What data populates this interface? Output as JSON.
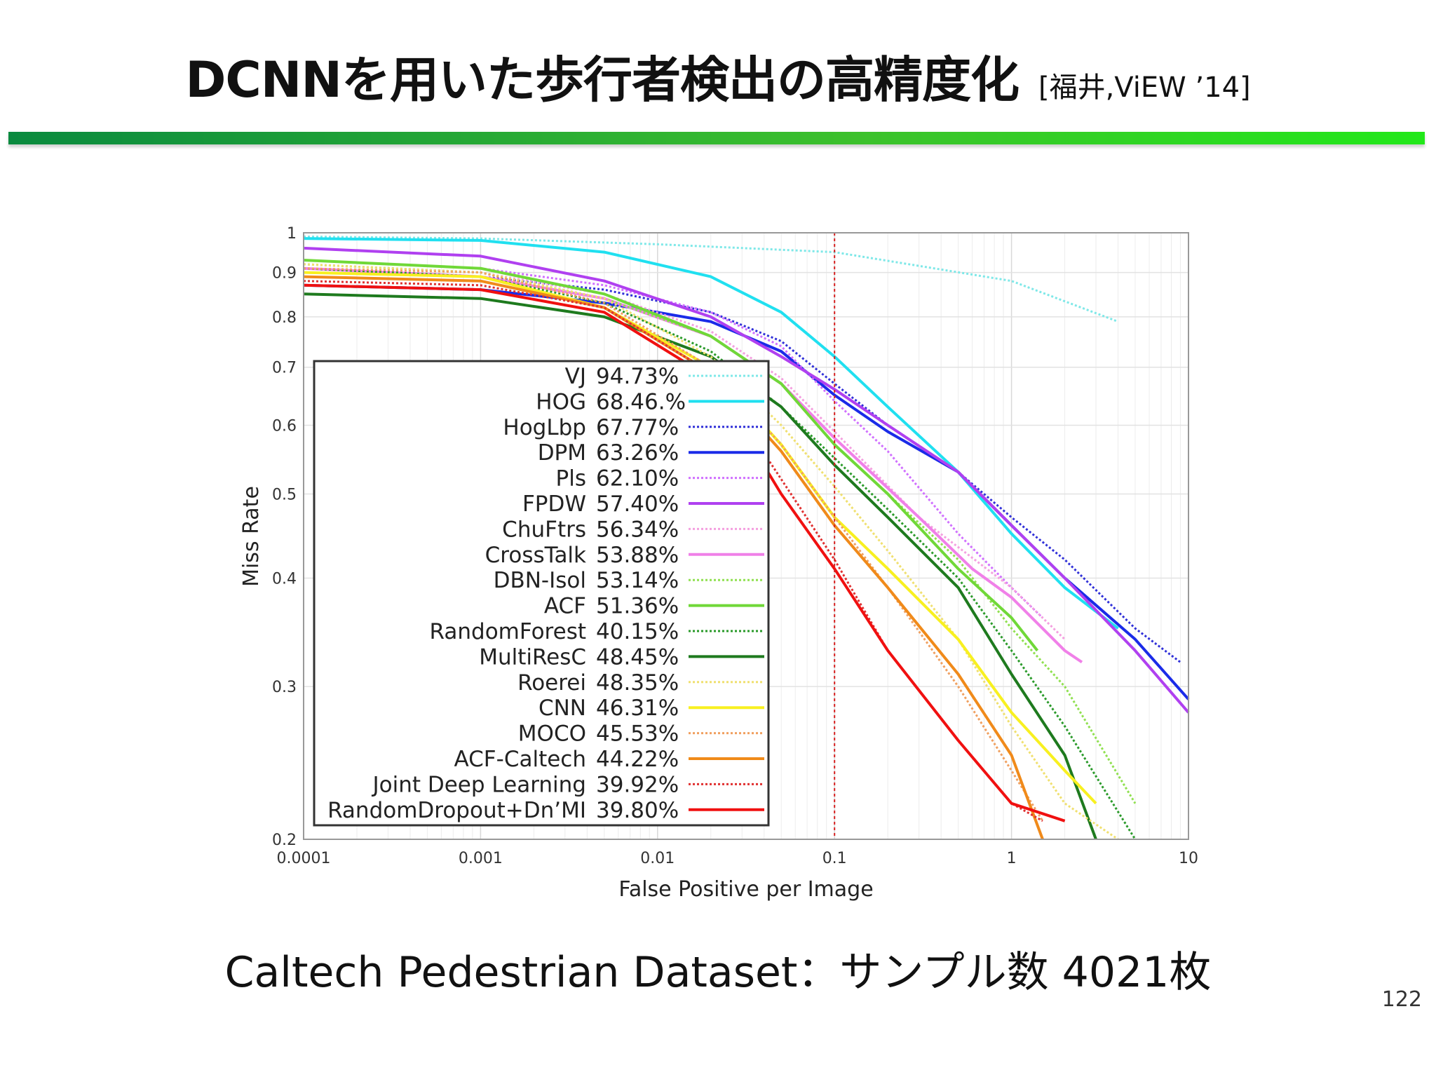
{
  "slide": {
    "title": "DCNNを用いた歩行者検出の高精度化",
    "citation": "[福井,ViEW ’14]",
    "caption": "Caltech Pedestrian Dataset：サンプル数 4021枚",
    "page_number": "122"
  },
  "chart_data": {
    "type": "line",
    "xlabel": "False Positive per Image",
    "ylabel": "Miss Rate",
    "xscale": "log",
    "yscale": "log",
    "xlim": [
      0.0001,
      10
    ],
    "ylim": [
      0.2,
      1
    ],
    "x_ticks": [
      {
        "value": 0.0001,
        "label": "0.0001"
      },
      {
        "value": 0.001,
        "label": "0.001"
      },
      {
        "value": 0.01,
        "label": "0.01"
      },
      {
        "value": 0.1,
        "label": "0.1"
      },
      {
        "value": 1,
        "label": "1"
      },
      {
        "value": 10,
        "label": "10"
      }
    ],
    "y_ticks": [
      {
        "value": 0.2,
        "label": "0.2"
      },
      {
        "value": 0.3,
        "label": "0.3"
      },
      {
        "value": 0.4,
        "label": "0.4"
      },
      {
        "value": 0.5,
        "label": "0.5"
      },
      {
        "value": 0.6,
        "label": "0.6"
      },
      {
        "value": 0.7,
        "label": "0.7"
      },
      {
        "value": 0.8,
        "label": "0.8"
      },
      {
        "value": 0.9,
        "label": "0.9"
      },
      {
        "value": 1,
        "label": "1"
      }
    ],
    "grid": true,
    "legend_position": "lower-left",
    "reference_line": {
      "x": 0.1,
      "color": "#d62020",
      "style": "dotted"
    },
    "series": [
      {
        "name": "VJ",
        "score": "94.73%",
        "color": "#7fe8e8",
        "dash": "dotted",
        "width": 3,
        "points": [
          [
            0.0001,
            0.99
          ],
          [
            0.001,
            0.985
          ],
          [
            0.01,
            0.97
          ],
          [
            0.1,
            0.95
          ],
          [
            1,
            0.88
          ],
          [
            4,
            0.79
          ]
        ]
      },
      {
        "name": "HOG",
        "score": "68.46.%",
        "color": "#20e0f0",
        "dash": "solid",
        "width": 4,
        "points": [
          [
            0.0001,
            0.985
          ],
          [
            0.001,
            0.98
          ],
          [
            0.005,
            0.95
          ],
          [
            0.02,
            0.89
          ],
          [
            0.05,
            0.81
          ],
          [
            0.1,
            0.72
          ],
          [
            0.2,
            0.63
          ],
          [
            0.5,
            0.53
          ],
          [
            1,
            0.45
          ],
          [
            2,
            0.39
          ],
          [
            4,
            0.35
          ]
        ]
      },
      {
        "name": "HogLbp",
        "score": "67.77%",
        "color": "#3030d8",
        "dash": "dotted",
        "width": 3,
        "points": [
          [
            0.0001,
            0.9
          ],
          [
            0.001,
            0.89
          ],
          [
            0.005,
            0.86
          ],
          [
            0.02,
            0.81
          ],
          [
            0.05,
            0.75
          ],
          [
            0.1,
            0.67
          ],
          [
            0.2,
            0.6
          ],
          [
            0.5,
            0.53
          ],
          [
            1,
            0.47
          ],
          [
            2,
            0.42
          ],
          [
            5,
            0.35
          ],
          [
            9,
            0.32
          ]
        ]
      },
      {
        "name": "DPM",
        "score": "63.26%",
        "color": "#1a2be8",
        "dash": "solid",
        "width": 4,
        "points": [
          [
            0.0001,
            0.87
          ],
          [
            0.001,
            0.86
          ],
          [
            0.005,
            0.83
          ],
          [
            0.02,
            0.79
          ],
          [
            0.05,
            0.73
          ],
          [
            0.1,
            0.65
          ],
          [
            0.2,
            0.59
          ],
          [
            0.5,
            0.53
          ],
          [
            1,
            0.46
          ],
          [
            2,
            0.4
          ],
          [
            5,
            0.34
          ],
          [
            10,
            0.29
          ]
        ]
      },
      {
        "name": "Pls",
        "score": "62.10%",
        "color": "#d070ff",
        "dash": "dotted",
        "width": 3,
        "points": [
          [
            0.0001,
            0.93
          ],
          [
            0.001,
            0.91
          ],
          [
            0.005,
            0.87
          ],
          [
            0.02,
            0.81
          ],
          [
            0.05,
            0.74
          ],
          [
            0.1,
            0.64
          ],
          [
            0.2,
            0.56
          ],
          [
            0.5,
            0.45
          ],
          [
            1,
            0.39
          ],
          [
            1.5,
            0.36
          ]
        ]
      },
      {
        "name": "FPDW",
        "score": "57.40%",
        "color": "#b040f0",
        "dash": "solid",
        "width": 4,
        "points": [
          [
            0.0001,
            0.96
          ],
          [
            0.001,
            0.94
          ],
          [
            0.005,
            0.88
          ],
          [
            0.02,
            0.8
          ],
          [
            0.05,
            0.72
          ],
          [
            0.1,
            0.66
          ],
          [
            0.2,
            0.6
          ],
          [
            0.5,
            0.53
          ],
          [
            1,
            0.46
          ],
          [
            2,
            0.4
          ],
          [
            5,
            0.33
          ],
          [
            10,
            0.28
          ]
        ]
      },
      {
        "name": "ChuFtrs",
        "score": "56.34%",
        "color": "#f4a0e0",
        "dash": "dotted",
        "width": 3,
        "points": [
          [
            0.0001,
            0.92
          ],
          [
            0.001,
            0.9
          ],
          [
            0.005,
            0.85
          ],
          [
            0.02,
            0.77
          ],
          [
            0.05,
            0.68
          ],
          [
            0.1,
            0.59
          ],
          [
            0.3,
            0.47
          ],
          [
            1,
            0.39
          ],
          [
            2,
            0.34
          ]
        ]
      },
      {
        "name": "CrossTalk",
        "score": "53.88%",
        "color": "#f080e8",
        "dash": "solid",
        "width": 4,
        "points": [
          [
            0.0001,
            0.91
          ],
          [
            0.001,
            0.89
          ],
          [
            0.005,
            0.84
          ],
          [
            0.02,
            0.76
          ],
          [
            0.05,
            0.67
          ],
          [
            0.1,
            0.58
          ],
          [
            0.3,
            0.47
          ],
          [
            0.6,
            0.41
          ],
          [
            1,
            0.38
          ],
          [
            2,
            0.33
          ],
          [
            2.5,
            0.32
          ]
        ]
      },
      {
        "name": "DBN-Isol",
        "score": "53.14%",
        "color": "#90e050",
        "dash": "dotted",
        "width": 3,
        "points": [
          [
            0.0001,
            0.92
          ],
          [
            0.001,
            0.9
          ],
          [
            0.005,
            0.84
          ],
          [
            0.02,
            0.76
          ],
          [
            0.05,
            0.67
          ],
          [
            0.1,
            0.57
          ],
          [
            0.2,
            0.5
          ],
          [
            0.5,
            0.42
          ],
          [
            1,
            0.35
          ],
          [
            2,
            0.3
          ],
          [
            5,
            0.22
          ]
        ]
      },
      {
        "name": "ACF",
        "score": "51.36%",
        "color": "#70d838",
        "dash": "solid",
        "width": 4,
        "points": [
          [
            0.0001,
            0.93
          ],
          [
            0.001,
            0.91
          ],
          [
            0.005,
            0.85
          ],
          [
            0.02,
            0.76
          ],
          [
            0.05,
            0.67
          ],
          [
            0.1,
            0.57
          ],
          [
            0.2,
            0.5
          ],
          [
            0.5,
            0.41
          ],
          [
            1,
            0.36
          ],
          [
            1.4,
            0.33
          ]
        ]
      },
      {
        "name": "RandomForest",
        "score": "40.15%",
        "color": "#2a9a2a",
        "dash": "dotted",
        "width": 3,
        "points": [
          [
            0.0001,
            0.91
          ],
          [
            0.001,
            0.89
          ],
          [
            0.005,
            0.83
          ],
          [
            0.02,
            0.73
          ],
          [
            0.05,
            0.63
          ],
          [
            0.1,
            0.55
          ],
          [
            0.2,
            0.48
          ],
          [
            0.5,
            0.4
          ],
          [
            1,
            0.33
          ],
          [
            2,
            0.27
          ],
          [
            5,
            0.2
          ]
        ]
      },
      {
        "name": "MultiResC",
        "score": "48.45%",
        "color": "#1e7a1e",
        "dash": "solid",
        "width": 4,
        "points": [
          [
            0.0001,
            0.85
          ],
          [
            0.001,
            0.84
          ],
          [
            0.005,
            0.8
          ],
          [
            0.02,
            0.72
          ],
          [
            0.05,
            0.63
          ],
          [
            0.1,
            0.54
          ],
          [
            0.2,
            0.47
          ],
          [
            0.5,
            0.39
          ],
          [
            1,
            0.31
          ],
          [
            2,
            0.25
          ],
          [
            3,
            0.2
          ]
        ]
      },
      {
        "name": "Roerei",
        "score": "48.35%",
        "color": "#f0e070",
        "dash": "dotted",
        "width": 3,
        "points": [
          [
            0.0001,
            0.92
          ],
          [
            0.001,
            0.9
          ],
          [
            0.005,
            0.84
          ],
          [
            0.02,
            0.72
          ],
          [
            0.05,
            0.6
          ],
          [
            0.1,
            0.51
          ],
          [
            0.2,
            0.43
          ],
          [
            0.5,
            0.34
          ],
          [
            1,
            0.27
          ],
          [
            2,
            0.22
          ],
          [
            4,
            0.2
          ]
        ]
      },
      {
        "name": "CNN",
        "score": "46.31%",
        "color": "#f8f020",
        "dash": "solid",
        "width": 4,
        "points": [
          [
            0.0001,
            0.9
          ],
          [
            0.001,
            0.89
          ],
          [
            0.005,
            0.82
          ],
          [
            0.02,
            0.7
          ],
          [
            0.05,
            0.57
          ],
          [
            0.1,
            0.47
          ],
          [
            0.2,
            0.41
          ],
          [
            0.5,
            0.34
          ],
          [
            1,
            0.28
          ],
          [
            2,
            0.24
          ],
          [
            3,
            0.22
          ]
        ]
      },
      {
        "name": "MOCO",
        "score": "45.53%",
        "color": "#f0a060",
        "dash": "dotted",
        "width": 3,
        "points": [
          [
            0.0001,
            0.91
          ],
          [
            0.001,
            0.9
          ],
          [
            0.005,
            0.83
          ],
          [
            0.02,
            0.7
          ],
          [
            0.05,
            0.57
          ],
          [
            0.1,
            0.47
          ],
          [
            0.2,
            0.39
          ],
          [
            0.5,
            0.3
          ],
          [
            1,
            0.24
          ],
          [
            1.5,
            0.21
          ]
        ]
      },
      {
        "name": "ACF-Caltech",
        "score": "44.22%",
        "color": "#f08a1a",
        "dash": "solid",
        "width": 4,
        "points": [
          [
            0.0001,
            0.89
          ],
          [
            0.001,
            0.88
          ],
          [
            0.005,
            0.82
          ],
          [
            0.02,
            0.69
          ],
          [
            0.05,
            0.56
          ],
          [
            0.1,
            0.46
          ],
          [
            0.2,
            0.39
          ],
          [
            0.5,
            0.31
          ],
          [
            1,
            0.25
          ],
          [
            1.5,
            0.2
          ]
        ]
      },
      {
        "name": "Joint Deep Learning",
        "score": "39.92%",
        "color": "#e03030",
        "dash": "dotted",
        "width": 3,
        "points": [
          [
            0.0001,
            0.88
          ],
          [
            0.001,
            0.87
          ],
          [
            0.005,
            0.82
          ],
          [
            0.02,
            0.69
          ],
          [
            0.05,
            0.52
          ],
          [
            0.1,
            0.42
          ],
          [
            0.2,
            0.33
          ],
          [
            0.5,
            0.26
          ],
          [
            1,
            0.22
          ],
          [
            1.5,
            0.21
          ]
        ]
      },
      {
        "name": "RandomDropout+Dn’MI",
        "score": "39.80%",
        "color": "#f01010",
        "dash": "solid",
        "width": 4,
        "points": [
          [
            0.0001,
            0.87
          ],
          [
            0.001,
            0.86
          ],
          [
            0.005,
            0.81
          ],
          [
            0.02,
            0.68
          ],
          [
            0.05,
            0.5
          ],
          [
            0.1,
            0.41
          ],
          [
            0.2,
            0.33
          ],
          [
            0.5,
            0.26
          ],
          [
            1,
            0.22
          ],
          [
            2,
            0.21
          ]
        ]
      }
    ]
  }
}
